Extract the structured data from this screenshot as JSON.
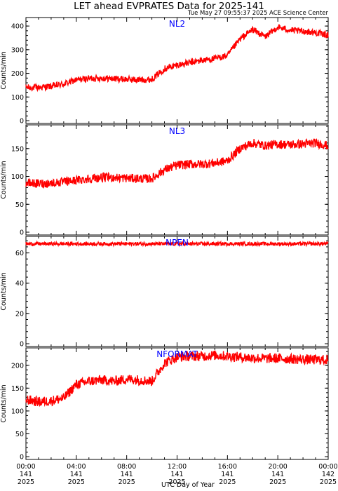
{
  "title": "LET ahead EVPRATES Data for 2025-141",
  "subtitle": "Tue May 27 09:55:37 2025 ACE Science Center",
  "xlabel": "UTC Day of Year",
  "colors": {
    "series": "#ff0000",
    "label": "#0000ff",
    "axis": "#000000"
  },
  "chart_data": [
    {
      "type": "line",
      "name": "NL2",
      "ylabel": "Counts/min",
      "ylim": [
        0,
        430
      ],
      "yticks": [
        0,
        100,
        200,
        300,
        400
      ],
      "x_unit": "hours UTC",
      "x": [
        0,
        1,
        2,
        3,
        4,
        5,
        6,
        7,
        8,
        9,
        10,
        11,
        12,
        13,
        14,
        15,
        16,
        17,
        18,
        19,
        20,
        21,
        22,
        23,
        24
      ],
      "values": [
        140,
        140,
        145,
        155,
        172,
        178,
        180,
        177,
        175,
        172,
        175,
        220,
        235,
        245,
        255,
        262,
        275,
        345,
        385,
        355,
        395,
        382,
        378,
        372,
        362
      ],
      "noise": 14
    },
    {
      "type": "line",
      "name": "NL3",
      "ylabel": "Counts/min",
      "ylim": [
        0,
        190
      ],
      "yticks": [
        0,
        50,
        100,
        150
      ],
      "x_unit": "hours UTC",
      "x": [
        0,
        1,
        2,
        3,
        4,
        5,
        6,
        7,
        8,
        9,
        10,
        11,
        12,
        13,
        14,
        15,
        16,
        17,
        18,
        19,
        20,
        21,
        22,
        23,
        24
      ],
      "values": [
        88,
        87,
        88,
        90,
        93,
        96,
        98,
        98,
        97,
        96,
        96,
        112,
        120,
        122,
        122,
        124,
        128,
        150,
        160,
        155,
        158,
        157,
        158,
        160,
        155
      ],
      "noise": 8
    },
    {
      "type": "line",
      "name": "NPEN",
      "ylabel": "Counts/min",
      "ylim": [
        0,
        70
      ],
      "yticks": [
        0,
        20,
        40,
        60
      ],
      "x_unit": "hours UTC",
      "x": [
        0,
        1,
        2,
        3,
        4,
        5,
        6,
        7,
        8,
        9,
        10,
        11,
        12,
        13,
        14,
        15,
        16,
        17,
        18,
        19,
        20,
        21,
        22,
        23,
        24
      ],
      "values": [
        66,
        66,
        66,
        66,
        66,
        66,
        66,
        66,
        66,
        66,
        66,
        66,
        66,
        66,
        66,
        66,
        66,
        66,
        66,
        66,
        66,
        66,
        66,
        66,
        66
      ],
      "noise": 1.2
    },
    {
      "type": "line",
      "name": "NFORMAT",
      "ylabel": "Counts/min",
      "ylim": [
        0,
        235
      ],
      "yticks": [
        0,
        50,
        100,
        150,
        200
      ],
      "x_unit": "hours UTC",
      "x": [
        0,
        1,
        2,
        3,
        4,
        5,
        6,
        7,
        8,
        9,
        10,
        11,
        12,
        13,
        14,
        15,
        16,
        17,
        18,
        19,
        20,
        21,
        22,
        23,
        24
      ],
      "values": [
        125,
        120,
        122,
        128,
        158,
        165,
        168,
        165,
        170,
        168,
        165,
        205,
        218,
        220,
        220,
        222,
        220,
        218,
        216,
        215,
        215,
        214,
        213,
        212,
        212
      ],
      "noise": 11
    }
  ],
  "x_axis": {
    "range_hours": [
      0,
      24
    ],
    "ticks": [
      {
        "h": 0,
        "time": "00:00",
        "doy": "141",
        "year": "2025"
      },
      {
        "h": 4,
        "time": "04:00",
        "doy": "141",
        "year": "2025"
      },
      {
        "h": 8,
        "time": "08:00",
        "doy": "141",
        "year": "2025"
      },
      {
        "h": 12,
        "time": "12:00",
        "doy": "141",
        "year": "2025"
      },
      {
        "h": 16,
        "time": "16:00",
        "doy": "141",
        "year": "2025"
      },
      {
        "h": 20,
        "time": "20:00",
        "doy": "141",
        "year": "2025"
      },
      {
        "h": 24,
        "time": "00:00",
        "doy": "142",
        "year": "2025"
      }
    ]
  }
}
